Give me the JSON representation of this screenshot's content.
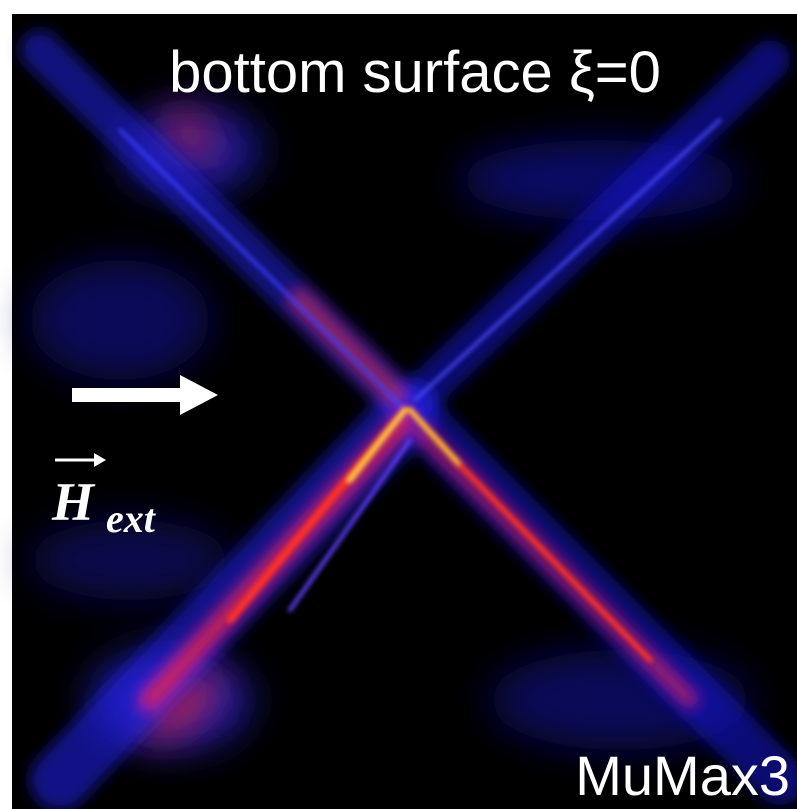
{
  "title": "bottom surface ξ=0",
  "software": "MuMax3",
  "field_label": {
    "symbol": "H",
    "subscript": "ext"
  }
}
